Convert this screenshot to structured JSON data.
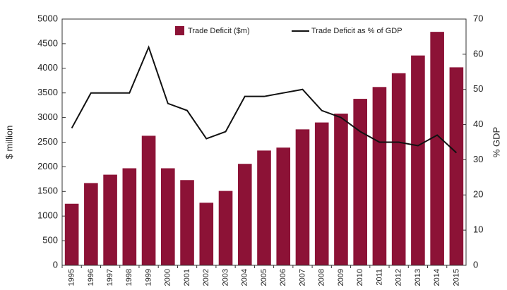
{
  "chart_data": {
    "type": "bar",
    "categories": [
      "1995",
      "1996",
      "1997",
      "1998",
      "1999",
      "2000",
      "2001",
      "2002",
      "2003",
      "2004",
      "2005",
      "2006",
      "2007",
      "2008",
      "2009",
      "2010",
      "2011",
      "2012",
      "2013",
      "2014",
      "2015"
    ],
    "series": [
      {
        "name": "Trade Deficit  ($m)",
        "color": "#8c1236",
        "values": [
          1250,
          1670,
          1840,
          1970,
          2630,
          1970,
          1730,
          1270,
          1510,
          2060,
          2330,
          2390,
          2760,
          2900,
          3080,
          3380,
          3620,
          3900,
          4260,
          4740,
          4020
        ]
      },
      {
        "name": "Trade Deficit as % of GDP",
        "type": "line",
        "axis": "y2",
        "color": "#111111",
        "values": [
          39,
          49,
          49,
          49,
          62,
          46,
          44,
          36,
          38,
          48,
          48,
          49,
          50,
          44,
          42,
          38,
          35,
          35,
          34,
          37,
          32
        ]
      }
    ],
    "y_label": "$ million",
    "y2_label": "% GDP",
    "ylim": [
      0,
      5000
    ],
    "yticks": [
      0,
      500,
      1000,
      1500,
      2000,
      2500,
      3000,
      3500,
      4000,
      4500,
      5000
    ],
    "y2lim": [
      0,
      70
    ],
    "y2ticks": [
      0,
      10,
      20,
      30,
      40,
      50,
      60,
      70
    ],
    "legend": "top"
  }
}
